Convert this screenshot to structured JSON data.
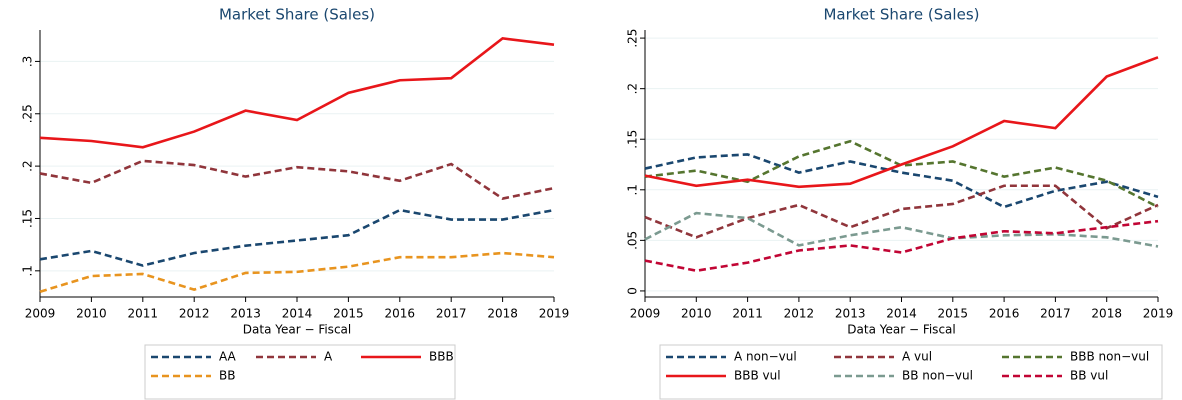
{
  "chart_data": [
    {
      "type": "line",
      "title": "Market Share (Sales)",
      "x_label": "Data Year − Fiscal",
      "x": [
        2009,
        2010,
        2011,
        2012,
        2013,
        2014,
        2015,
        2016,
        2017,
        2018,
        2019
      ],
      "xlim": [
        2009,
        2019
      ],
      "xticks": [
        2009,
        2010,
        2011,
        2012,
        2013,
        2014,
        2015,
        2016,
        2017,
        2018,
        2019
      ],
      "ylim": [
        0.075,
        0.33
      ],
      "yticks": [
        {
          "value": 0.1,
          "label": ".1"
        },
        {
          "value": 0.15,
          "label": ".15"
        },
        {
          "value": 0.2,
          "label": ".2"
        },
        {
          "value": 0.25,
          "label": ".25"
        },
        {
          "value": 0.3,
          "label": ".3"
        }
      ],
      "grid": true,
      "legend": "bottom",
      "series": [
        {
          "name": "AA",
          "color": "#1a476f",
          "style": "dash",
          "values": [
            0.111,
            0.119,
            0.105,
            0.117,
            0.124,
            0.129,
            0.134,
            0.158,
            0.149,
            0.149,
            0.158
          ]
        },
        {
          "name": "A",
          "color": "#90353b",
          "style": "dash",
          "values": [
            0.193,
            0.184,
            0.205,
            0.201,
            0.19,
            0.199,
            0.195,
            0.186,
            0.202,
            0.169,
            0.179
          ]
        },
        {
          "name": "BBB",
          "color": "#e8161a",
          "style": "solid",
          "values": [
            0.227,
            0.224,
            0.218,
            0.233,
            0.253,
            0.244,
            0.27,
            0.282,
            0.284,
            0.322,
            0.316
          ]
        },
        {
          "name": "BB",
          "color": "#e8941f",
          "style": "dash",
          "values": [
            0.08,
            0.095,
            0.097,
            0.082,
            0.098,
            0.099,
            0.104,
            0.113,
            0.113,
            0.117,
            0.113
          ]
        }
      ]
    },
    {
      "type": "line",
      "title": "Market Share (Sales)",
      "x_label": "Data Year − Fiscal",
      "x": [
        2009,
        2010,
        2011,
        2012,
        2013,
        2014,
        2015,
        2016,
        2017,
        2018,
        2019
      ],
      "xlim": [
        2009,
        2019
      ],
      "xticks": [
        2009,
        2010,
        2011,
        2012,
        2013,
        2014,
        2015,
        2016,
        2017,
        2018,
        2019
      ],
      "ylim": [
        -0.006,
        0.258
      ],
      "yticks": [
        0,
        {
          "value": 0.05,
          "label": ".05"
        },
        {
          "value": 0.1,
          "label": ".1"
        },
        {
          "value": 0.15,
          "label": ".15"
        },
        {
          "value": 0.2,
          "label": ".2"
        },
        {
          "value": 0.25,
          "label": ".25"
        }
      ],
      "grid": true,
      "legend": "bottom",
      "series": [
        {
          "name": "A non−vul",
          "color": "#1a476f",
          "style": "dash",
          "values": [
            0.121,
            0.132,
            0.135,
            0.117,
            0.128,
            0.117,
            0.109,
            0.083,
            0.099,
            0.108,
            0.093
          ]
        },
        {
          "name": "A vul",
          "color": "#90353b",
          "style": "dash",
          "values": [
            0.073,
            0.053,
            0.072,
            0.085,
            0.063,
            0.081,
            0.086,
            0.104,
            0.104,
            0.062,
            0.085
          ]
        },
        {
          "name": "BBB non−vul",
          "color": "#55752f",
          "style": "dash",
          "values": [
            0.113,
            0.119,
            0.108,
            0.133,
            0.148,
            0.124,
            0.128,
            0.113,
            0.122,
            0.109,
            0.083
          ]
        },
        {
          "name": "BBB vul",
          "color": "#e8161a",
          "style": "solid",
          "values": [
            0.114,
            0.104,
            0.11,
            0.103,
            0.106,
            0.125,
            0.143,
            0.168,
            0.161,
            0.212,
            0.231
          ]
        },
        {
          "name": "BB non−vul",
          "color": "#7b9a90",
          "style": "dash",
          "values": [
            0.051,
            0.077,
            0.072,
            0.045,
            0.055,
            0.063,
            0.052,
            0.055,
            0.056,
            0.053,
            0.044
          ]
        },
        {
          "name": "BB vul",
          "color": "#c10534",
          "style": "dash",
          "values": [
            0.03,
            0.02,
            0.028,
            0.04,
            0.045,
            0.038,
            0.052,
            0.059,
            0.057,
            0.063,
            0.069
          ]
        }
      ]
    }
  ]
}
